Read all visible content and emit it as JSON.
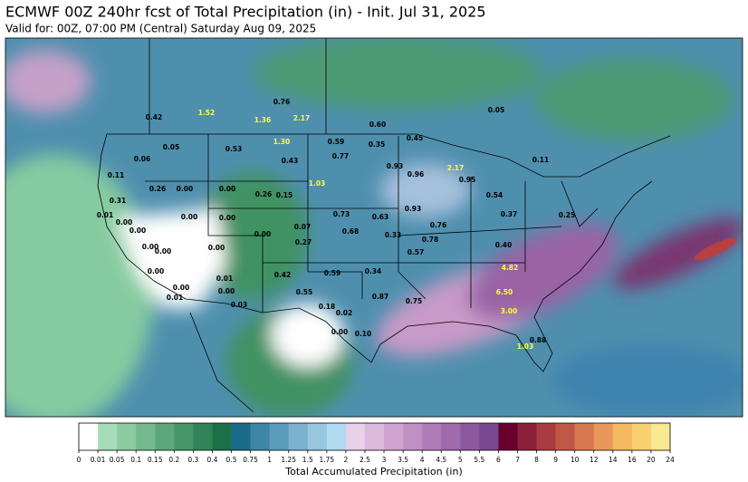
{
  "header": {
    "title": "ECMWF 00Z 240hr fcst of Total Precipitation (in) - Init. Jul 31, 2025",
    "subtitle": "Valid for: 00Z, 07:00 PM (Central) Saturday Aug 09, 2025"
  },
  "colorbar": {
    "label": "Total Accumulated Precipitation (in)",
    "ticks": [
      "0",
      "0.01",
      "0.05",
      "0.1",
      "0.15",
      "0.2",
      "0.3",
      "0.4",
      "0.5",
      "0.75",
      "1",
      "1.25",
      "1.5",
      "1.75",
      "2",
      "2.5",
      "3",
      "3.5",
      "4",
      "4.5",
      "5",
      "5.5",
      "6",
      "7",
      "8",
      "9",
      "10",
      "12",
      "14",
      "16",
      "20",
      "24"
    ],
    "colors": [
      "#ffffff",
      "#a6dcb8",
      "#8ccaa0",
      "#74b98c",
      "#5ca87a",
      "#46966a",
      "#2f8458",
      "#1c7048",
      "#1a6a8c",
      "#3d86a8",
      "#5c9cbc",
      "#7ab2d0",
      "#96c6e0",
      "#b0daf0",
      "#e8d0e8",
      "#dcb8dc",
      "#d0a4d0",
      "#c090c4",
      "#b07cb8",
      "#a06aac",
      "#8c58a0",
      "#784890",
      "#6a0030",
      "#8c2038",
      "#a83c40",
      "#c05848",
      "#d87850",
      "#e89858",
      "#f4b860",
      "#f8d070",
      "#f8e890"
    ]
  },
  "stations": [
    {
      "text": "0.42",
      "color": "#000000"
    },
    {
      "text": "0.76",
      "color": "#000000"
    },
    {
      "text": "1.36",
      "color": "#ffff33"
    },
    {
      "text": "2.17",
      "color": "#ffff33"
    },
    {
      "text": "1.52",
      "color": "#ffff33"
    },
    {
      "text": "0.60",
      "color": "#000000"
    },
    {
      "text": "0.05",
      "color": "#000000"
    },
    {
      "text": "0.53",
      "color": "#000000"
    },
    {
      "text": "0.05",
      "color": "#000000"
    },
    {
      "text": "0.06",
      "color": "#000000"
    },
    {
      "text": "1.30",
      "color": "#ffff33"
    },
    {
      "text": "0.59",
      "color": "#000000"
    },
    {
      "text": "0.35",
      "color": "#000000"
    },
    {
      "text": "0.45",
      "color": "#000000"
    },
    {
      "text": "0.77",
      "color": "#000000"
    },
    {
      "text": "0.43",
      "color": "#000000"
    },
    {
      "text": "0.93",
      "color": "#000000"
    },
    {
      "text": "0.11",
      "color": "#000000"
    },
    {
      "text": "0.26",
      "color": "#000000"
    },
    {
      "text": "0.00",
      "color": "#000000"
    },
    {
      "text": "0.00",
      "color": "#000000"
    },
    {
      "text": "0.26",
      "color": "#000000"
    },
    {
      "text": "0.15",
      "color": "#000000"
    },
    {
      "text": "1.03",
      "color": "#ffff33"
    },
    {
      "text": "0.96",
      "color": "#000000"
    },
    {
      "text": "2.17",
      "color": "#ffff33"
    },
    {
      "text": "0.95",
      "color": "#000000"
    },
    {
      "text": "0.11",
      "color": "#000000"
    },
    {
      "text": "0.54",
      "color": "#000000"
    },
    {
      "text": "0.31",
      "color": "#000000"
    },
    {
      "text": "0.01",
      "color": "#000000"
    },
    {
      "text": "0.00",
      "color": "#000000"
    },
    {
      "text": "0.00",
      "color": "#000000"
    },
    {
      "text": "0.00",
      "color": "#000000"
    },
    {
      "text": "0.73",
      "color": "#000000"
    },
    {
      "text": "0.63",
      "color": "#000000"
    },
    {
      "text": "0.93",
      "color": "#000000"
    },
    {
      "text": "0.76",
      "color": "#000000"
    },
    {
      "text": "0.37",
      "color": "#000000"
    },
    {
      "text": "0.25",
      "color": "#000000"
    },
    {
      "text": "0.00",
      "color": "#000000"
    },
    {
      "text": "0.00",
      "color": "#000000"
    },
    {
      "text": "0.00",
      "color": "#000000"
    },
    {
      "text": "0.00",
      "color": "#000000"
    },
    {
      "text": "0.07",
      "color": "#000000"
    },
    {
      "text": "0.27",
      "color": "#000000"
    },
    {
      "text": "0.68",
      "color": "#000000"
    },
    {
      "text": "0.33",
      "color": "#000000"
    },
    {
      "text": "0.78",
      "color": "#000000"
    },
    {
      "text": "0.40",
      "color": "#000000"
    },
    {
      "text": "0.00",
      "color": "#000000"
    },
    {
      "text": "0.57",
      "color": "#000000"
    },
    {
      "text": "0.00",
      "color": "#000000"
    },
    {
      "text": "0.01",
      "color": "#000000"
    },
    {
      "text": "0.42",
      "color": "#000000"
    },
    {
      "text": "0.59",
      "color": "#000000"
    },
    {
      "text": "0.34",
      "color": "#000000"
    },
    {
      "text": "0.00",
      "color": "#000000"
    },
    {
      "text": "0.00",
      "color": "#000000"
    },
    {
      "text": "0.01",
      "color": "#000000"
    },
    {
      "text": "0.03",
      "color": "#000000"
    },
    {
      "text": "0.55",
      "color": "#000000"
    },
    {
      "text": "0.87",
      "color": "#000000"
    },
    {
      "text": "0.75",
      "color": "#000000"
    },
    {
      "text": "0.18",
      "color": "#000000"
    },
    {
      "text": "0.02",
      "color": "#000000"
    },
    {
      "text": "6.50",
      "color": "#ffff33"
    },
    {
      "text": "4.82",
      "color": "#ffff33"
    },
    {
      "text": "3.00",
      "color": "#ffff33"
    },
    {
      "text": "0.00",
      "color": "#000000"
    },
    {
      "text": "0.10",
      "color": "#000000"
    },
    {
      "text": "0.88",
      "color": "#000000"
    },
    {
      "text": "1.03",
      "color": "#ffff33"
    }
  ]
}
